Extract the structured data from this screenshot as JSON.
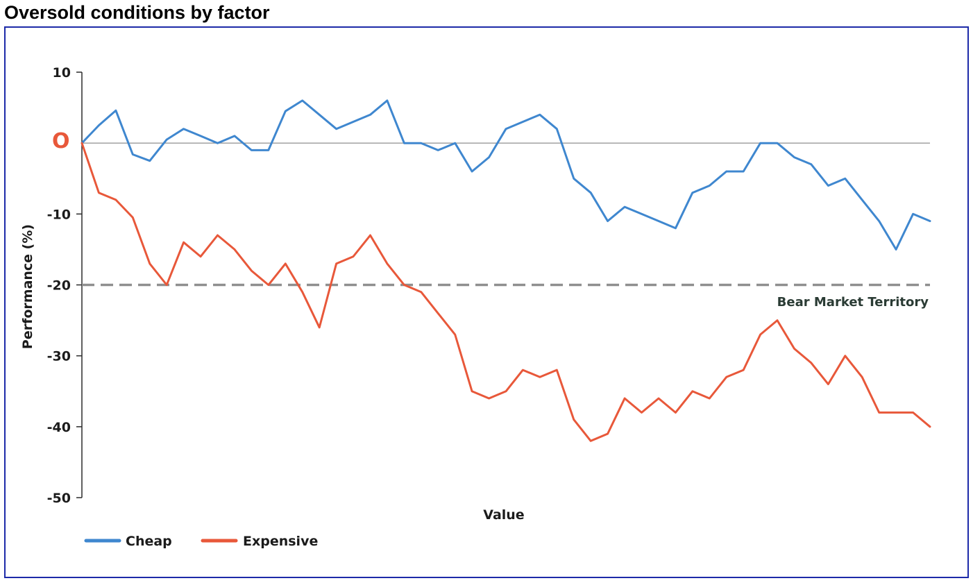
{
  "chart_data": {
    "type": "line",
    "title": "Oversold conditions by factor",
    "xlabel": "Value",
    "ylabel": "Performance (%)",
    "ylim": [
      -50,
      10
    ],
    "yticks": [
      10,
      0,
      -10,
      -20,
      -30,
      -40,
      -50
    ],
    "ytick_labels": [
      "10",
      "0",
      "-10",
      "-20",
      "-30",
      "-40",
      "-50"
    ],
    "xlim": [
      0,
      100
    ],
    "grid": false,
    "legend_position": "bottom-left",
    "reference_lines": [
      {
        "value": 0,
        "style": "solid",
        "color": "#9a9a9a"
      },
      {
        "value": -20,
        "style": "dashed",
        "color": "#8f8f8f",
        "label": "Bear Market Territory"
      }
    ],
    "x": [
      0,
      2,
      4,
      6,
      8,
      10,
      12,
      14,
      16,
      18,
      20,
      22,
      24,
      26,
      28,
      30,
      32,
      34,
      36,
      38,
      40,
      42,
      44,
      46,
      48,
      50,
      52,
      54,
      56,
      58,
      60,
      62,
      64,
      66,
      68,
      70,
      72,
      74,
      76,
      78,
      80,
      82,
      84,
      86,
      88,
      90,
      92,
      94,
      96,
      98,
      100
    ],
    "series": [
      {
        "name": "Cheap",
        "color": "#3f87cf",
        "values": [
          0,
          2.5,
          4.6,
          -1.6,
          -2.5,
          0.5,
          2,
          1,
          0,
          1,
          -1,
          -1,
          4.5,
          6,
          4,
          2,
          3,
          4,
          6,
          0,
          0,
          -1,
          0,
          -4,
          -2,
          2,
          3,
          4,
          2,
          -5,
          -7,
          -11,
          -9,
          -10,
          -11,
          -12,
          -7,
          -6,
          -4,
          -4,
          0,
          0,
          -2,
          -3,
          -6,
          -5,
          -8,
          -11,
          -15,
          -10,
          -11
        ]
      },
      {
        "name": "Expensive",
        "color": "#e8583a",
        "values": [
          0,
          -7,
          -8,
          -10.5,
          -17,
          -20,
          -14,
          -16,
          -13,
          -15,
          -18,
          -20,
          -17,
          -21,
          -26,
          -17,
          -16,
          -13,
          -17,
          -20,
          -21,
          -24,
          -27,
          -35,
          -36,
          -35,
          -32,
          -33,
          -32,
          -39,
          -42,
          -41,
          -36,
          -38,
          -36,
          -38,
          -35,
          -36,
          -33,
          -32,
          -27,
          -25,
          -29,
          -31,
          -34,
          -30,
          -33,
          -38,
          -38,
          -38,
          -40
        ]
      }
    ]
  },
  "legend": {
    "items": [
      {
        "label": "Cheap",
        "color": "#3f87cf"
      },
      {
        "label": "Expensive",
        "color": "#e8583a"
      }
    ]
  },
  "annotations": {
    "bear_market": "Bear Market Territory",
    "zero_marker": "O"
  }
}
